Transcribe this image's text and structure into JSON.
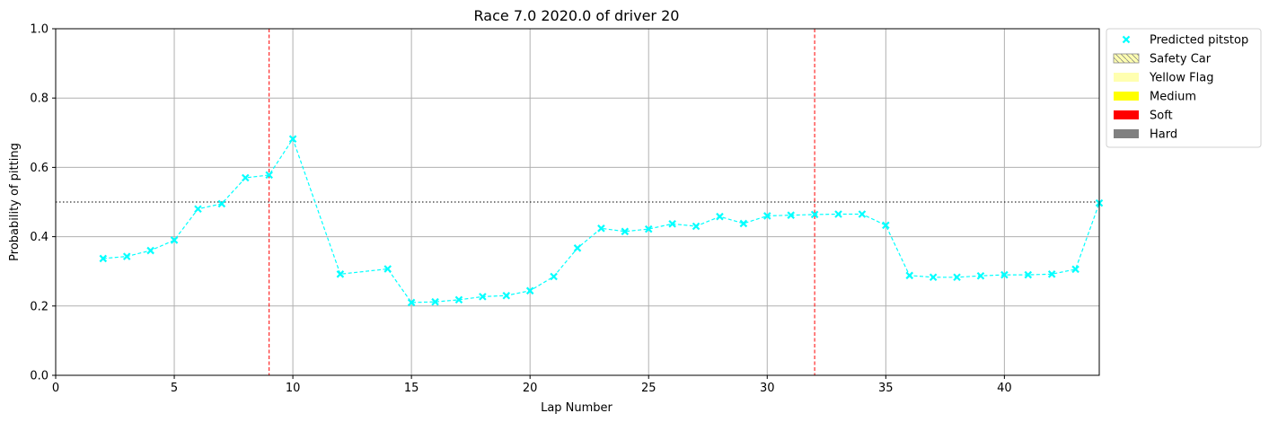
{
  "chart_data": {
    "type": "line",
    "title": "Race 7.0 2020.0 of driver 20",
    "xlabel": "Lap Number",
    "ylabel": "Probability of pitting",
    "xlim": [
      0,
      44
    ],
    "ylim": [
      0,
      1
    ],
    "xticks": [
      0,
      5,
      10,
      15,
      20,
      25,
      30,
      35,
      40
    ],
    "yticks": [
      0.0,
      0.2,
      0.4,
      0.6,
      0.8,
      1.0
    ],
    "xtick_labels": [
      "0",
      "5",
      "10",
      "15",
      "20",
      "25",
      "30",
      "35",
      "40"
    ],
    "ytick_labels": [
      "0.0",
      "0.2",
      "0.4",
      "0.6",
      "0.8",
      "1.0"
    ],
    "grid": true,
    "threshold": 0.5,
    "pitstop_laps": [
      9,
      32
    ],
    "series": [
      {
        "name": "Predicted pitstop",
        "color": "#00ffff",
        "marker": "x",
        "x": [
          2,
          3,
          4,
          5,
          6,
          7,
          8,
          9,
          10,
          12,
          14,
          15,
          16,
          17,
          18,
          19,
          20,
          21,
          22,
          23,
          24,
          25,
          26,
          27,
          28,
          29,
          30,
          31,
          32,
          33,
          34,
          35,
          36,
          37,
          38,
          39,
          40,
          41,
          42,
          43,
          44
        ],
        "y": [
          0.337,
          0.343,
          0.36,
          0.39,
          0.48,
          0.495,
          0.57,
          0.578,
          0.682,
          0.292,
          0.307,
          0.21,
          0.212,
          0.218,
          0.227,
          0.23,
          0.244,
          0.285,
          0.367,
          0.424,
          0.415,
          0.422,
          0.437,
          0.43,
          0.458,
          0.438,
          0.46,
          0.462,
          0.464,
          0.465,
          0.465,
          0.433,
          0.288,
          0.283,
          0.283,
          0.287,
          0.29,
          0.29,
          0.292,
          0.306,
          0.497
        ]
      }
    ],
    "legend": {
      "position": "outside-top-right",
      "entries": [
        {
          "label": "Predicted pitstop",
          "kind": "marker",
          "color": "#00ffff"
        },
        {
          "label": "Safety Car",
          "kind": "patch",
          "color": "#ffffb0",
          "hatch": true
        },
        {
          "label": "Yellow Flag",
          "kind": "patch",
          "color": "#ffffb0"
        },
        {
          "label": "Medium",
          "kind": "patch",
          "color": "#ffff00"
        },
        {
          "label": "Soft",
          "kind": "patch",
          "color": "#ff0000"
        },
        {
          "label": "Hard",
          "kind": "patch",
          "color": "#808080"
        }
      ]
    }
  }
}
